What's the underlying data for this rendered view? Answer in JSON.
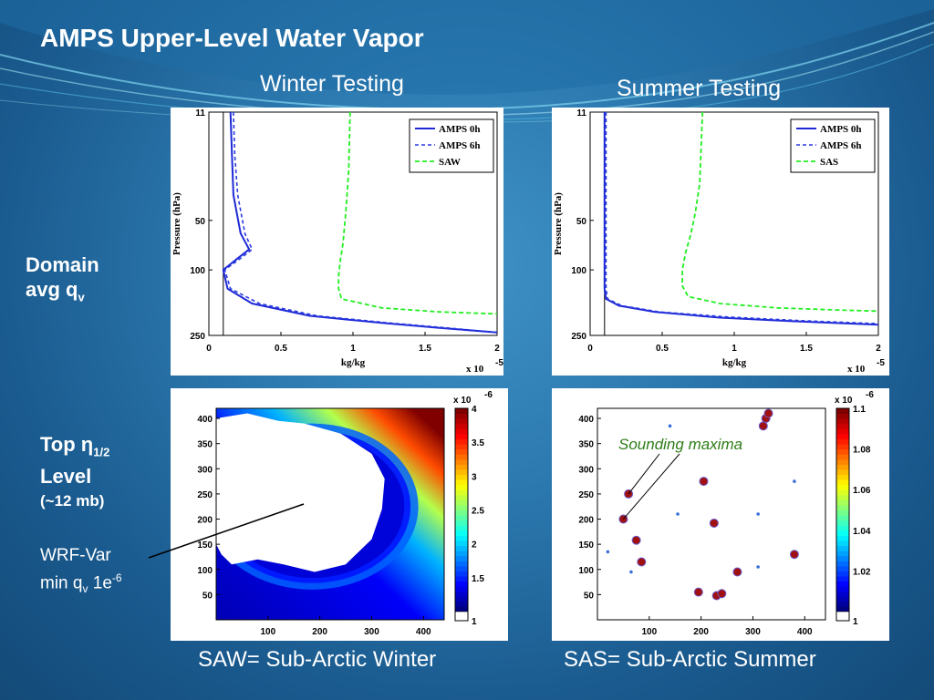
{
  "slide": {
    "title": "AMPS Upper-Level Water Vapor",
    "col_left": "Winter Testing",
    "col_right": "Summer Testing",
    "row1_label_1": "Domain",
    "row1_label_2": "avg q",
    "row1_label_sub": "v",
    "row2_label_1": "Top η",
    "row2_label_sub": "1/2",
    "row2_label_2": "Level",
    "row2_label_3": "(~12 mb)",
    "wrf_1": "WRF-Var",
    "wrf_2": "min q",
    "wrf_2_sub": "v",
    "wrf_2_rest": " 1e",
    "wrf_2_sup": "-6",
    "caption_left": "SAW= Sub-Arctic Winter",
    "caption_right": "SAS= Sub-Arctic Summer",
    "annotation": "Sounding maxima"
  },
  "colors": {
    "amps0": "#1f2ad6",
    "amps6": "#2a3ae0",
    "sa": "#22ee22",
    "annotation": "#2e7d18"
  },
  "chart_data": [
    {
      "type": "line",
      "ylabel": "Pressure (hPa)",
      "xlabel": "kg/kg",
      "xmult": "x 10",
      "xmult_exp": "-5",
      "xlim": [
        0,
        2
      ],
      "ylim": [
        11,
        250
      ],
      "yscale": "log",
      "yreversed": true,
      "xticks": [
        "0",
        "0.5",
        "1",
        "1.5",
        "2"
      ],
      "yticks": [
        "11",
        "50",
        "100",
        "250"
      ],
      "legend": [
        "AMPS 0h",
        "AMPS 6h",
        "SAW"
      ],
      "legend_position": "top-right",
      "series": [
        {
          "name": "AMPS 0h",
          "style": "solid",
          "x": [
            0.15,
            0.16,
            0.17,
            0.22,
            0.28,
            0.2,
            0.1,
            0.13,
            0.3,
            0.7,
            1.2,
            1.6,
            2.0
          ],
          "y": [
            11,
            20,
            35,
            60,
            75,
            85,
            100,
            130,
            160,
            190,
            210,
            225,
            240
          ]
        },
        {
          "name": "AMPS 6h",
          "style": "dashed",
          "x": [
            0.17,
            0.18,
            0.2,
            0.25,
            0.3,
            0.22,
            0.11,
            0.15,
            0.35,
            0.75,
            1.25,
            1.65,
            2.0
          ],
          "y": [
            11,
            20,
            35,
            60,
            75,
            85,
            100,
            130,
            160,
            190,
            210,
            225,
            240
          ]
        },
        {
          "name": "SAW",
          "style": "dashed",
          "x": [
            0.98,
            0.97,
            0.95,
            0.93,
            0.91,
            0.9,
            0.9,
            0.92,
            1.2,
            1.6,
            2.0
          ],
          "y": [
            11,
            25,
            45,
            70,
            90,
            110,
            130,
            150,
            170,
            180,
            185
          ]
        }
      ],
      "vline_x": 0.1
    },
    {
      "type": "line",
      "ylabel": "Pressure (hPa)",
      "xlabel": "kg/kg",
      "xmult": "x 10",
      "xmult_exp": "-5",
      "xlim": [
        0,
        2
      ],
      "ylim": [
        11,
        250
      ],
      "yscale": "log",
      "yreversed": true,
      "xticks": [
        "0",
        "0.5",
        "1",
        "1.5",
        "2"
      ],
      "yticks": [
        "11",
        "50",
        "100",
        "250"
      ],
      "legend": [
        "AMPS 0h",
        "AMPS 6h",
        "SAS"
      ],
      "legend_position": "top-right",
      "series": [
        {
          "name": "AMPS 0h",
          "style": "solid",
          "x": [
            0.1,
            0.1,
            0.1,
            0.1,
            0.11,
            0.2,
            0.45,
            0.9,
            1.4,
            2.0
          ],
          "y": [
            11,
            50,
            100,
            130,
            150,
            165,
            180,
            195,
            205,
            215
          ]
        },
        {
          "name": "AMPS 6h",
          "style": "dashed",
          "x": [
            0.11,
            0.11,
            0.11,
            0.11,
            0.12,
            0.22,
            0.48,
            0.95,
            1.45,
            2.0
          ],
          "y": [
            11,
            50,
            100,
            130,
            150,
            165,
            180,
            193,
            203,
            212
          ]
        },
        {
          "name": "SAS",
          "style": "dashed",
          "x": [
            0.78,
            0.76,
            0.73,
            0.7,
            0.66,
            0.64,
            0.64,
            0.68,
            0.9,
            1.3,
            1.7,
            2.0
          ],
          "y": [
            11,
            30,
            45,
            60,
            80,
            100,
            125,
            145,
            160,
            170,
            175,
            178
          ]
        }
      ],
      "vline_x": 0.1
    },
    {
      "type": "heatmap",
      "xlim": [
        0,
        440
      ],
      "ylim": [
        0,
        420
      ],
      "xticks": [
        "100",
        "200",
        "300",
        "400"
      ],
      "yticks": [
        "50",
        "100",
        "150",
        "200",
        "250",
        "300",
        "350",
        "400"
      ],
      "colorbar_ticks": [
        "1",
        "1.5",
        "2",
        "2.5",
        "3",
        "3.5",
        "4"
      ],
      "colorbar_range": [
        1,
        4
      ],
      "colorbar_mult": "x 10",
      "colorbar_exp": "-6"
    },
    {
      "type": "heatmap",
      "xlim": [
        0,
        440
      ],
      "ylim": [
        0,
        420
      ],
      "xticks": [
        "100",
        "200",
        "300",
        "400"
      ],
      "yticks": [
        "50",
        "100",
        "150",
        "200",
        "250",
        "300",
        "350",
        "400"
      ],
      "colorbar_ticks": [
        "1",
        "1.02",
        "1.04",
        "1.06",
        "1.08",
        "1.1"
      ],
      "colorbar_range": [
        1,
        1.1
      ],
      "colorbar_mult": "x 10",
      "colorbar_exp": "-6",
      "maxima": [
        [
          60,
          250
        ],
        [
          50,
          200
        ],
        [
          75,
          158
        ],
        [
          85,
          115
        ],
        [
          205,
          275
        ],
        [
          225,
          192
        ],
        [
          270,
          95
        ],
        [
          195,
          55
        ],
        [
          230,
          48
        ],
        [
          240,
          52
        ],
        [
          380,
          130
        ],
        [
          320,
          385
        ],
        [
          325,
          400
        ],
        [
          330,
          410
        ]
      ]
    }
  ]
}
